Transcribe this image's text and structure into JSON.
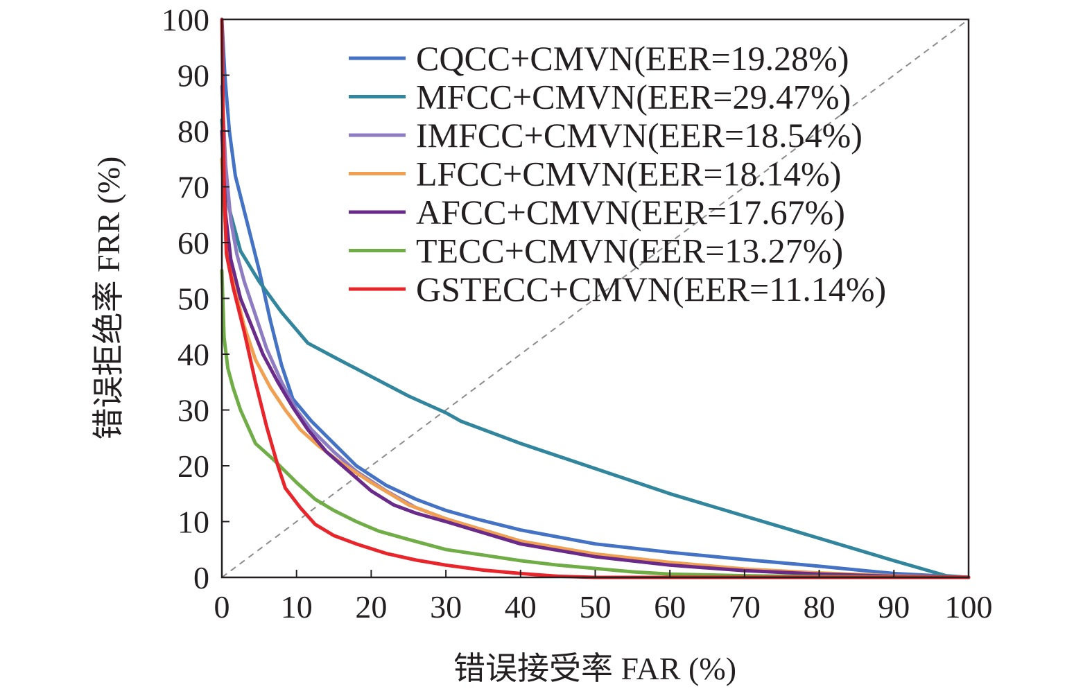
{
  "chart_data": {
    "type": "line",
    "title": "",
    "xlabel": "错误接受率 FAR (%)",
    "ylabel": "错误拒绝率 FRR (%)",
    "xlim": [
      0,
      100
    ],
    "ylim": [
      0,
      100
    ],
    "xticks": [
      0,
      10,
      20,
      30,
      40,
      50,
      60,
      70,
      80,
      90,
      100
    ],
    "yticks": [
      0,
      10,
      20,
      30,
      40,
      50,
      60,
      70,
      80,
      90,
      100
    ],
    "grid": false,
    "legend_position": "top-right",
    "reference_line": {
      "from": [
        0,
        0
      ],
      "to": [
        100,
        100
      ],
      "style": "dashed",
      "color": "#8c8c8c"
    },
    "series": [
      {
        "name": "CQCC+CMVN(EER=19.28%)",
        "color": "#4472c4",
        "points": [
          [
            0,
            100
          ],
          [
            0.4,
            90
          ],
          [
            1,
            80
          ],
          [
            1.8,
            72
          ],
          [
            3.5,
            63
          ],
          [
            5,
            55
          ],
          [
            6.5,
            46
          ],
          [
            8,
            38
          ],
          [
            9.5,
            32
          ],
          [
            12,
            28
          ],
          [
            15,
            24
          ],
          [
            18,
            20
          ],
          [
            22,
            16.5
          ],
          [
            26,
            14
          ],
          [
            30,
            12
          ],
          [
            34,
            10.5
          ],
          [
            40,
            8.5
          ],
          [
            50,
            6
          ],
          [
            60,
            4.5
          ],
          [
            70,
            3.2
          ],
          [
            80,
            2
          ],
          [
            90,
            0.7
          ],
          [
            100,
            0
          ]
        ]
      },
      {
        "name": "MFCC+CMVN(EER=29.47%)",
        "color": "#31859c",
        "points": [
          [
            0,
            82
          ],
          [
            0.5,
            72
          ],
          [
            1,
            66
          ],
          [
            2.5,
            58.5
          ],
          [
            5,
            53
          ],
          [
            8,
            47.5
          ],
          [
            11.5,
            42
          ],
          [
            15,
            39.5
          ],
          [
            20,
            36
          ],
          [
            25,
            32.5
          ],
          [
            30,
            29.5
          ],
          [
            32,
            28
          ],
          [
            40,
            24
          ],
          [
            50,
            19.5
          ],
          [
            60,
            15
          ],
          [
            70,
            11
          ],
          [
            80,
            7
          ],
          [
            90,
            3
          ],
          [
            97,
            0.3
          ],
          [
            100,
            0
          ]
        ]
      },
      {
        "name": "IMFCC+CMVN(EER=18.54%)",
        "color": "#8e7cc3",
        "points": [
          [
            0,
            88
          ],
          [
            0.5,
            74
          ],
          [
            1.2,
            64
          ],
          [
            2,
            58
          ],
          [
            3,
            53
          ],
          [
            4.5,
            47
          ],
          [
            6,
            41
          ],
          [
            8,
            35
          ],
          [
            10,
            30
          ],
          [
            12,
            26.5
          ],
          [
            15,
            22.5
          ],
          [
            18,
            19
          ],
          [
            22,
            15.5
          ],
          [
            26,
            12.5
          ],
          [
            30,
            10.5
          ],
          [
            35,
            8.5
          ],
          [
            40,
            6.5
          ],
          [
            50,
            4
          ],
          [
            60,
            2.5
          ],
          [
            70,
            1.3
          ],
          [
            80,
            0.7
          ],
          [
            90,
            0.3
          ],
          [
            100,
            0
          ]
        ]
      },
      {
        "name": "LFCC+CMVN(EER=18.14%)",
        "color": "#f0a050",
        "points": [
          [
            0,
            75
          ],
          [
            0.5,
            62
          ],
          [
            1.5,
            53
          ],
          [
            3,
            45
          ],
          [
            4.5,
            39
          ],
          [
            6.5,
            34
          ],
          [
            8.5,
            30
          ],
          [
            10.5,
            26.5
          ],
          [
            13,
            23.5
          ],
          [
            16,
            20.5
          ],
          [
            20,
            17
          ],
          [
            25,
            13
          ],
          [
            30,
            10.5
          ],
          [
            35,
            8.5
          ],
          [
            40,
            6.5
          ],
          [
            50,
            4.2
          ],
          [
            60,
            2.7
          ],
          [
            70,
            1.5
          ],
          [
            80,
            0.8
          ],
          [
            90,
            0.3
          ],
          [
            100,
            0
          ]
        ]
      },
      {
        "name": "AFCC+CMVN(EER=17.67%)",
        "color": "#6a2a8a",
        "points": [
          [
            0,
            80
          ],
          [
            0.5,
            65
          ],
          [
            1.2,
            57
          ],
          [
            2.5,
            50
          ],
          [
            4,
            45
          ],
          [
            5.5,
            40
          ],
          [
            7.5,
            35
          ],
          [
            9.5,
            30.5
          ],
          [
            11.5,
            26.5
          ],
          [
            14,
            22.5
          ],
          [
            17,
            19
          ],
          [
            20,
            15.5
          ],
          [
            23,
            13
          ],
          [
            26,
            11.5
          ],
          [
            30,
            10
          ],
          [
            35,
            8
          ],
          [
            40,
            6
          ],
          [
            50,
            3.7
          ],
          [
            60,
            2.2
          ],
          [
            70,
            1.2
          ],
          [
            80,
            0.6
          ],
          [
            90,
            0.2
          ],
          [
            100,
            0
          ]
        ]
      },
      {
        "name": "TECC+CMVN(EER=13.27%)",
        "color": "#70ad47",
        "points": [
          [
            0,
            55
          ],
          [
            0.3,
            43
          ],
          [
            0.8,
            37.5
          ],
          [
            1.5,
            34
          ],
          [
            2.5,
            30
          ],
          [
            4.5,
            24
          ],
          [
            7,
            21
          ],
          [
            10,
            17
          ],
          [
            12.5,
            14
          ],
          [
            15,
            12
          ],
          [
            18,
            10
          ],
          [
            21,
            8.3
          ],
          [
            25,
            6.8
          ],
          [
            30,
            5
          ],
          [
            35,
            4
          ],
          [
            40,
            3
          ],
          [
            45,
            2.2
          ],
          [
            50,
            1.6
          ],
          [
            55,
            1
          ],
          [
            60,
            0.6
          ],
          [
            70,
            0.3
          ],
          [
            80,
            0.15
          ],
          [
            100,
            0
          ]
        ]
      },
      {
        "name": "GSTECC+CMVN(EER=11.14%)",
        "color": "#e8252b",
        "points": [
          [
            0,
            100
          ],
          [
            0.3,
            70
          ],
          [
            0.6,
            58
          ],
          [
            1.5,
            52
          ],
          [
            3,
            44
          ],
          [
            4.5,
            35
          ],
          [
            6,
            27
          ],
          [
            7.5,
            20
          ],
          [
            8.5,
            16
          ],
          [
            10.5,
            12.5
          ],
          [
            12.5,
            9.5
          ],
          [
            15,
            7.5
          ],
          [
            18,
            6
          ],
          [
            22,
            4.3
          ],
          [
            26,
            3.1
          ],
          [
            30,
            2.2
          ],
          [
            35,
            1.3
          ],
          [
            40,
            0.7
          ],
          [
            45,
            0.2
          ],
          [
            50,
            0
          ],
          [
            100,
            0
          ]
        ]
      }
    ]
  }
}
